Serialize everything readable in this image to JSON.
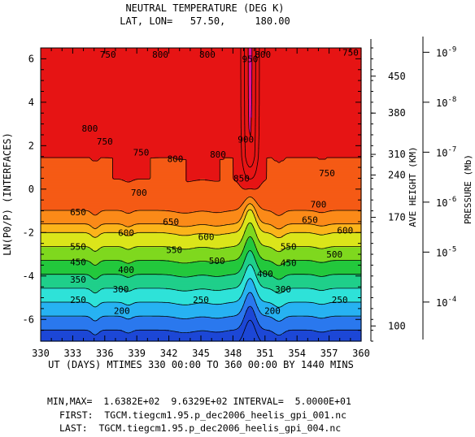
{
  "chart_data": {
    "type": "contour",
    "title": "NEUTRAL TEMPERATURE (DEG K)",
    "subtitle": "LAT, LON=   57.50,     180.00",
    "xlabel": "UT (DAYS) MTIMES 330 00:00 TO 360 00:00 BY 1440 MINS",
    "ylabel": "LN(P0/P) (INTERFACES)",
    "xlim": [
      330,
      360
    ],
    "ylim": [
      -7,
      6.5
    ],
    "x_ticks": [
      "330",
      "333",
      "336",
      "339",
      "342",
      "345",
      "348",
      "351",
      "354",
      "357",
      "360"
    ],
    "y_ticks": [
      "6",
      "4",
      "2",
      "0",
      "-2",
      "-4",
      "-6"
    ],
    "right_axis_height": {
      "label": "AVE HEIGHT (KM)",
      "ticks": [
        {
          "label": "450",
          "lnp": 5.2
        },
        {
          "label": "380",
          "lnp": 3.5
        },
        {
          "label": "310",
          "lnp": 1.6
        },
        {
          "label": "240",
          "lnp": 0.65
        },
        {
          "label": "170",
          "lnp": -1.3
        },
        {
          "label": "100",
          "lnp": -6.3
        }
      ]
    },
    "right_axis_pressure": {
      "label": "PRESSURE (Mb)",
      "ticks": [
        {
          "base": "10",
          "exp": "-9",
          "lnp": 6.3
        },
        {
          "base": "10",
          "exp": "-8",
          "lnp": 4.0
        },
        {
          "base": "10",
          "exp": "-7",
          "lnp": 1.7
        },
        {
          "base": "10",
          "exp": "-6",
          "lnp": -0.6
        },
        {
          "base": "10",
          "exp": "-5",
          "lnp": -2.9
        },
        {
          "base": "10",
          "exp": "-4",
          "lnp": -5.2
        }
      ]
    },
    "contour_levels": [
      200,
      250,
      300,
      350,
      400,
      450,
      500,
      550,
      600,
      650,
      700,
      750,
      800,
      850,
      900,
      950
    ],
    "fill_colors": [
      "#1c47d6",
      "#2a78ee",
      "#27b2f2",
      "#2ee2d8",
      "#1fcf8a",
      "#23c83c",
      "#7fd81e",
      "#dbe51a",
      "#fbb41a",
      "#fb8a18",
      "#f55a15",
      "#e61414",
      "#e61414",
      "#e61414",
      "#e0109e",
      "#f028d2"
    ],
    "contour_labels": [
      {
        "text": "200",
        "x": 337.6,
        "y": -5.6
      },
      {
        "text": "200",
        "x": 351.7,
        "y": -5.6
      },
      {
        "text": "250",
        "x": 333.5,
        "y": -5.1
      },
      {
        "text": "250",
        "x": 345.0,
        "y": -5.1
      },
      {
        "text": "250",
        "x": 358.0,
        "y": -5.1
      },
      {
        "text": "300",
        "x": 337.5,
        "y": -4.6
      },
      {
        "text": "300",
        "x": 352.7,
        "y": -4.6
      },
      {
        "text": "350",
        "x": 333.5,
        "y": -4.15
      },
      {
        "text": "400",
        "x": 338.0,
        "y": -3.7
      },
      {
        "text": "400",
        "x": 351.0,
        "y": -3.9
      },
      {
        "text": "450",
        "x": 333.5,
        "y": -3.35
      },
      {
        "text": "450",
        "x": 353.2,
        "y": -3.4
      },
      {
        "text": "500",
        "x": 346.5,
        "y": -3.3
      },
      {
        "text": "500",
        "x": 357.5,
        "y": -3.0
      },
      {
        "text": "550",
        "x": 333.5,
        "y": -2.65
      },
      {
        "text": "550",
        "x": 342.5,
        "y": -2.8
      },
      {
        "text": "550",
        "x": 353.2,
        "y": -2.65
      },
      {
        "text": "600",
        "x": 338.0,
        "y": -2.0
      },
      {
        "text": "600",
        "x": 345.5,
        "y": -2.2
      },
      {
        "text": "600",
        "x": 358.5,
        "y": -1.9
      },
      {
        "text": "650",
        "x": 333.5,
        "y": -1.05
      },
      {
        "text": "650",
        "x": 342.2,
        "y": -1.5
      },
      {
        "text": "650",
        "x": 355.2,
        "y": -1.4
      },
      {
        "text": "700",
        "x": 339.2,
        "y": -0.15
      },
      {
        "text": "700",
        "x": 356.0,
        "y": -0.7
      },
      {
        "text": "750",
        "x": 336.0,
        "y": 2.2
      },
      {
        "text": "750",
        "x": 339.4,
        "y": 1.7
      },
      {
        "text": "750",
        "x": 356.8,
        "y": 0.75
      },
      {
        "text": "750",
        "x": 359.0,
        "y": 6.3
      },
      {
        "text": "750",
        "x": 336.3,
        "y": 6.2
      },
      {
        "text": "800",
        "x": 334.6,
        "y": 2.8
      },
      {
        "text": "800",
        "x": 342.6,
        "y": 1.4
      },
      {
        "text": "800",
        "x": 346.6,
        "y": 1.6
      },
      {
        "text": "800",
        "x": 341.2,
        "y": 6.2
      },
      {
        "text": "800",
        "x": 345.6,
        "y": 6.2
      },
      {
        "text": "800",
        "x": 350.8,
        "y": 6.2
      },
      {
        "text": "850",
        "x": 348.8,
        "y": 0.5
      },
      {
        "text": "900",
        "x": 349.2,
        "y": 2.3
      },
      {
        "text": "950",
        "x": 349.6,
        "y": 6.0
      }
    ],
    "stats": {
      "min_max": "MIN,MAX=  1.6382E+02  9.6329E+02 INTERVAL=  5.0000E+01",
      "first": "FIRST:  TGCM.tiegcm1.95.p_dec2006_heelis_gpi_001.nc",
      "last": "LAST:  TGCM.tiegcm1.95.p_dec2006_heelis_gpi_004.nc"
    }
  }
}
